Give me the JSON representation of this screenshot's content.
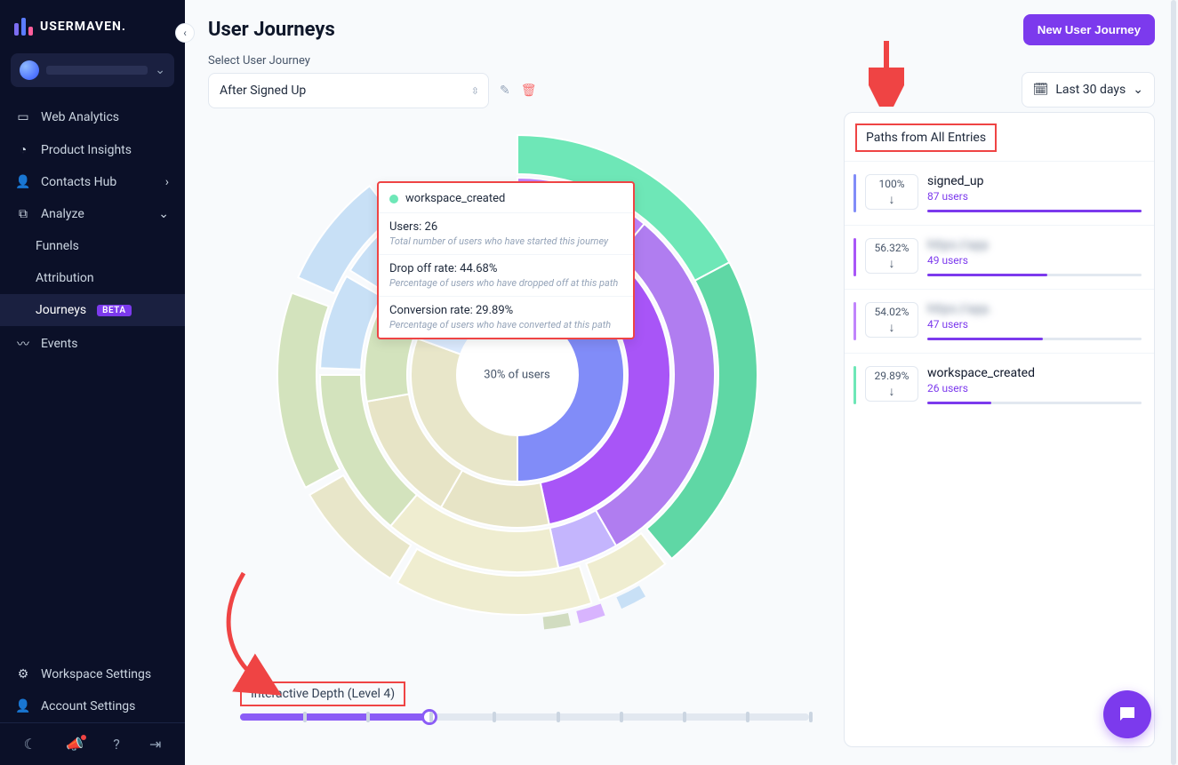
{
  "app": {
    "brand": "USERMAVEN."
  },
  "sidebar": {
    "items": [
      {
        "label": "Web Analytics"
      },
      {
        "label": "Product Insights"
      },
      {
        "label": "Contacts Hub"
      },
      {
        "label": "Analyze"
      }
    ],
    "analyze_children": [
      {
        "label": "Funnels"
      },
      {
        "label": "Attribution"
      },
      {
        "label": "Journeys",
        "badge": "BETA"
      }
    ],
    "events_label": "Events",
    "footer": {
      "workspace": "Workspace Settings",
      "account": "Account Settings"
    }
  },
  "header": {
    "title": "User Journeys",
    "new_button": "New User Journey"
  },
  "controls": {
    "select_label": "Select User Journey",
    "selected_journey": "After Signed Up",
    "date_label": "Last 30 days"
  },
  "chart": {
    "center_label": "30% of users",
    "depth_label": "Interactive Depth (Level 4)",
    "depth_level": 4,
    "depth_max": 10,
    "type": "sunburst",
    "background": "#f8fafc",
    "rings": [
      {
        "inner_r": 68,
        "outer_r": 120,
        "segments": [
          {
            "start": -90,
            "end": 90,
            "color": "#818cf8"
          },
          {
            "start": 90,
            "end": 200,
            "color": "#e8e6c9"
          },
          {
            "start": 200,
            "end": 270,
            "color": "#dbeafe"
          }
        ]
      },
      {
        "inner_r": 124,
        "outer_r": 172,
        "segments": [
          {
            "start": -90,
            "end": 78,
            "color": "#a855f7"
          },
          {
            "start": 78,
            "end": 120,
            "color": "#e7e4c6"
          },
          {
            "start": 120,
            "end": 170,
            "color": "#e7e4c6"
          },
          {
            "start": 170,
            "end": 210,
            "color": "#d3e3bd"
          },
          {
            "start": 210,
            "end": 268,
            "color": "#dbeafe"
          }
        ]
      },
      {
        "inner_r": 176,
        "outer_r": 222,
        "segments": [
          {
            "start": -90,
            "end": -50,
            "color": "#c084fc"
          },
          {
            "start": -50,
            "end": 60,
            "color": "#b07df0"
          },
          {
            "start": 60,
            "end": 78,
            "color": "#c4b5fd"
          },
          {
            "start": 78,
            "end": 130,
            "color": "#efedd0"
          },
          {
            "start": 130,
            "end": 180,
            "color": "#d3e3bd"
          },
          {
            "start": 182,
            "end": 210,
            "color": "#c8e0f6"
          },
          {
            "start": 212,
            "end": 245,
            "color": "#c8e0f6"
          }
        ]
      },
      {
        "inner_r": 226,
        "outer_r": 270,
        "segments": [
          {
            "start": -90,
            "end": -28,
            "color": "#6ee7b7"
          },
          {
            "start": -28,
            "end": 50,
            "color": "#5fd7a5"
          },
          {
            "start": 52,
            "end": 70,
            "color": "#efedd0"
          },
          {
            "start": 72,
            "end": 120,
            "color": "#efedd0"
          },
          {
            "start": 122,
            "end": 150,
            "color": "#e8e6c9"
          },
          {
            "start": 152,
            "end": 200,
            "color": "#d3e3bd"
          },
          {
            "start": 204,
            "end": 232,
            "color": "#c8e0f6"
          }
        ]
      }
    ],
    "outer_scatter": [
      {
        "start": 60,
        "end": 66,
        "color": "#c8e0f6"
      },
      {
        "start": 70,
        "end": 76,
        "color": "#d8b4fe"
      },
      {
        "start": 78,
        "end": 84,
        "color": "#d1dcc0"
      }
    ]
  },
  "tooltip": {
    "dot_color": "#6ee7b7",
    "title": "workspace_created",
    "users_label": "Users: 26",
    "users_desc": "Total number of users who have started this journey",
    "dropoff_label": "Drop off rate: 44.68%",
    "dropoff_desc": "Percentage of users who have dropped off at this path",
    "conv_label": "Conversion rate: 29.89%",
    "conv_desc": "Percentage of users who have converted at this path"
  },
  "paths": {
    "title": "Paths from All Entries",
    "items": [
      {
        "pct": "100%",
        "name": "signed_up",
        "users": "87 users",
        "bar_pct": 100,
        "stripe": "#818cf8",
        "blur": false
      },
      {
        "pct": "56.32%",
        "name": "https://app",
        "users": "49 users",
        "bar_pct": 56,
        "stripe": "#a855f7",
        "blur": true
      },
      {
        "pct": "54.02%",
        "name": "https://app.",
        "users": "47 users",
        "bar_pct": 54,
        "stripe": "#c084fc",
        "blur": true
      },
      {
        "pct": "29.89%",
        "name": "workspace_created",
        "users": "26 users",
        "bar_pct": 30,
        "stripe": "#6ee7b7",
        "blur": false
      }
    ]
  },
  "annotations": {
    "arrow_color": "#ef4444"
  }
}
